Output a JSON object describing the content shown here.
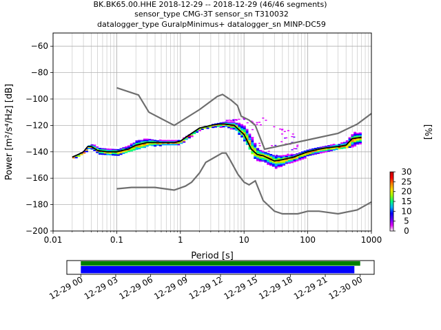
{
  "title": {
    "line1": "BK.BK65.00.HHE   2018-12-29 -- 2018-12-29  (46/46 segments)",
    "line2": "sensor_type CMG-3T sensor_sn T310032",
    "line3": "datalogger_type GuralpMinimus+ datalogger_sn MINP-DC59"
  },
  "chart_data": [
    {
      "type": "heatmap",
      "xlabel": "Period [s]",
      "ylabel": "Power [m²/s⁴/Hz] [dB]",
      "xscale": "log",
      "xlim": [
        0.01,
        1000
      ],
      "ylim": [
        -200,
        -50
      ],
      "grid": true,
      "x_ticks": [
        {
          "value": 0.01,
          "label": "0.01"
        },
        {
          "value": 0.1,
          "label": "0.1"
        },
        {
          "value": 1,
          "label": "1"
        },
        {
          "value": 10,
          "label": "10"
        },
        {
          "value": 100,
          "label": "100"
        },
        {
          "value": 1000,
          "label": "1000"
        }
      ],
      "y_ticks": [
        {
          "value": -60,
          "label": "−60"
        },
        {
          "value": -80,
          "label": "−80"
        },
        {
          "value": -100,
          "label": "−100"
        },
        {
          "value": -120,
          "label": "−120"
        },
        {
          "value": -140,
          "label": "−140"
        },
        {
          "value": -160,
          "label": "−160"
        },
        {
          "value": -180,
          "label": "−180"
        },
        {
          "value": -200,
          "label": "−200"
        }
      ],
      "colorbar": {
        "label": "[%]",
        "range": [
          0,
          30
        ],
        "ticks": [
          {
            "value": 0,
            "label": "0"
          },
          {
            "value": 5,
            "label": "5"
          },
          {
            "value": 10,
            "label": "10"
          },
          {
            "value": 15,
            "label": "15"
          },
          {
            "value": 20,
            "label": "20"
          },
          {
            "value": 25,
            "label": "25"
          },
          {
            "value": 30,
            "label": "30"
          }
        ],
        "colors": [
          "#ffffff",
          "#e000ff",
          "#6000ff",
          "#0000ff",
          "#00b0ff",
          "#00ff80",
          "#a0ff00",
          "#ffe000",
          "#ff8000",
          "#ff0000",
          "#c00000"
        ]
      },
      "mode_curve": [
        [
          0.02,
          -144
        ],
        [
          0.025,
          -142
        ],
        [
          0.03,
          -140
        ],
        [
          0.035,
          -136
        ],
        [
          0.04,
          -136
        ],
        [
          0.05,
          -139
        ],
        [
          0.07,
          -140
        ],
        [
          0.1,
          -140
        ],
        [
          0.15,
          -138
        ],
        [
          0.2,
          -135
        ],
        [
          0.3,
          -133
        ],
        [
          0.5,
          -133
        ],
        [
          0.8,
          -133
        ],
        [
          1.0,
          -132
        ],
        [
          1.3,
          -128
        ],
        [
          2.0,
          -122
        ],
        [
          3.0,
          -120
        ],
        [
          4.0,
          -119
        ],
        [
          5.0,
          -119
        ],
        [
          7.0,
          -120
        ],
        [
          10.0,
          -127
        ],
        [
          13.0,
          -138
        ],
        [
          16.0,
          -142
        ],
        [
          20.0,
          -143
        ],
        [
          30.0,
          -147
        ],
        [
          40.0,
          -146
        ],
        [
          60.0,
          -144
        ],
        [
          100.0,
          -140
        ],
        [
          150.0,
          -138
        ],
        [
          200.0,
          -137
        ],
        [
          300.0,
          -136
        ],
        [
          400.0,
          -135
        ],
        [
          500.0,
          -130
        ],
        [
          700.0,
          -129
        ]
      ],
      "spread_band": {
        "upper": [
          [
            0.02,
            -143
          ],
          [
            0.03,
            -138
          ],
          [
            0.035,
            -134
          ],
          [
            0.05,
            -135
          ],
          [
            0.1,
            -136
          ],
          [
            0.15,
            -133
          ],
          [
            0.2,
            -128
          ],
          [
            0.3,
            -128
          ],
          [
            0.5,
            -130
          ],
          [
            1.0,
            -130
          ],
          [
            2.0,
            -122
          ],
          [
            3.0,
            -118
          ],
          [
            5.0,
            -116
          ],
          [
            7.0,
            -116
          ],
          [
            10.0,
            -116
          ],
          [
            13.0,
            -123
          ],
          [
            16.0,
            -138
          ],
          [
            20.0,
            -140
          ],
          [
            30.0,
            -143
          ],
          [
            50.0,
            -142
          ],
          [
            100.0,
            -137
          ],
          [
            200.0,
            -134
          ],
          [
            300.0,
            -132
          ],
          [
            500.0,
            -125
          ],
          [
            700.0,
            -124
          ]
        ],
        "lower": [
          [
            0.02,
            -145
          ],
          [
            0.03,
            -141
          ],
          [
            0.035,
            -138
          ],
          [
            0.05,
            -141
          ],
          [
            0.1,
            -142
          ],
          [
            0.15,
            -140
          ],
          [
            0.2,
            -138
          ],
          [
            0.3,
            -135
          ],
          [
            0.5,
            -135
          ],
          [
            1.0,
            -134
          ],
          [
            2.0,
            -124
          ],
          [
            3.0,
            -121
          ],
          [
            5.0,
            -121
          ],
          [
            7.0,
            -123
          ],
          [
            10.0,
            -132
          ],
          [
            13.0,
            -142
          ],
          [
            16.0,
            -148
          ],
          [
            20.0,
            -150
          ],
          [
            30.0,
            -154
          ],
          [
            50.0,
            -149
          ],
          [
            100.0,
            -143
          ],
          [
            200.0,
            -139
          ],
          [
            300.0,
            -138
          ],
          [
            500.0,
            -136
          ],
          [
            700.0,
            -133
          ]
        ]
      },
      "scatter_bumps": [
        {
          "x_from": 5.0,
          "x_to": 70.0,
          "peak": -112,
          "center": 25,
          "width": 0.45
        }
      ],
      "nlnm": [
        [
          0.1,
          -168
        ],
        [
          0.17,
          -167
        ],
        [
          0.4,
          -167
        ],
        [
          0.8,
          -169
        ],
        [
          1.2,
          -166
        ],
        [
          1.5,
          -163
        ],
        [
          2.0,
          -156
        ],
        [
          2.5,
          -148
        ],
        [
          3.5,
          -144
        ],
        [
          4.5,
          -141
        ],
        [
          5.2,
          -141
        ],
        [
          6.0,
          -146
        ],
        [
          8.0,
          -157
        ],
        [
          10.0,
          -163
        ],
        [
          12.0,
          -165
        ],
        [
          15.0,
          -162
        ],
        [
          20.0,
          -177
        ],
        [
          30.0,
          -185
        ],
        [
          40.0,
          -187
        ],
        [
          70.0,
          -187
        ],
        [
          100.0,
          -185
        ],
        [
          150.0,
          -185
        ],
        [
          300.0,
          -187
        ],
        [
          600.0,
          -184
        ],
        [
          1000.0,
          -178
        ]
      ],
      "nhnm": [
        [
          0.1,
          -91.5
        ],
        [
          0.22,
          -97
        ],
        [
          0.32,
          -110
        ],
        [
          0.8,
          -120
        ],
        [
          2.0,
          -108
        ],
        [
          3.8,
          -98
        ],
        [
          4.6,
          -96.5
        ],
        [
          6.3,
          -101
        ],
        [
          7.9,
          -105
        ],
        [
          9.0,
          -113
        ],
        [
          12.0,
          -116
        ],
        [
          15.0,
          -120
        ],
        [
          21.0,
          -138
        ],
        [
          100.0,
          -131
        ],
        [
          300.0,
          -126
        ],
        [
          600.0,
          -119
        ],
        [
          1000.0,
          -111
        ]
      ]
    },
    {
      "type": "bar",
      "title": "",
      "x_ticks": [
        {
          "value": 0,
          "label": "12-29 00"
        },
        {
          "value": 3,
          "label": "12-29 03"
        },
        {
          "value": 6,
          "label": "12-29 06"
        },
        {
          "value": 9,
          "label": "12-29 09"
        },
        {
          "value": 12,
          "label": "12-29 12"
        },
        {
          "value": 15,
          "label": "12-29 15"
        },
        {
          "value": 18,
          "label": "12-29 18"
        },
        {
          "value": 21,
          "label": "12-29 21"
        },
        {
          "value": 24,
          "label": "12-30 00"
        }
      ],
      "xlim": [
        -1.2,
        25.2
      ],
      "series": [
        {
          "name": "",
          "color": "#008000",
          "start_hour": 0,
          "end_hour": 24.0
        },
        {
          "name": "",
          "color": "#0000ff",
          "start_hour": 0,
          "end_hour": 23.5
        }
      ]
    }
  ]
}
